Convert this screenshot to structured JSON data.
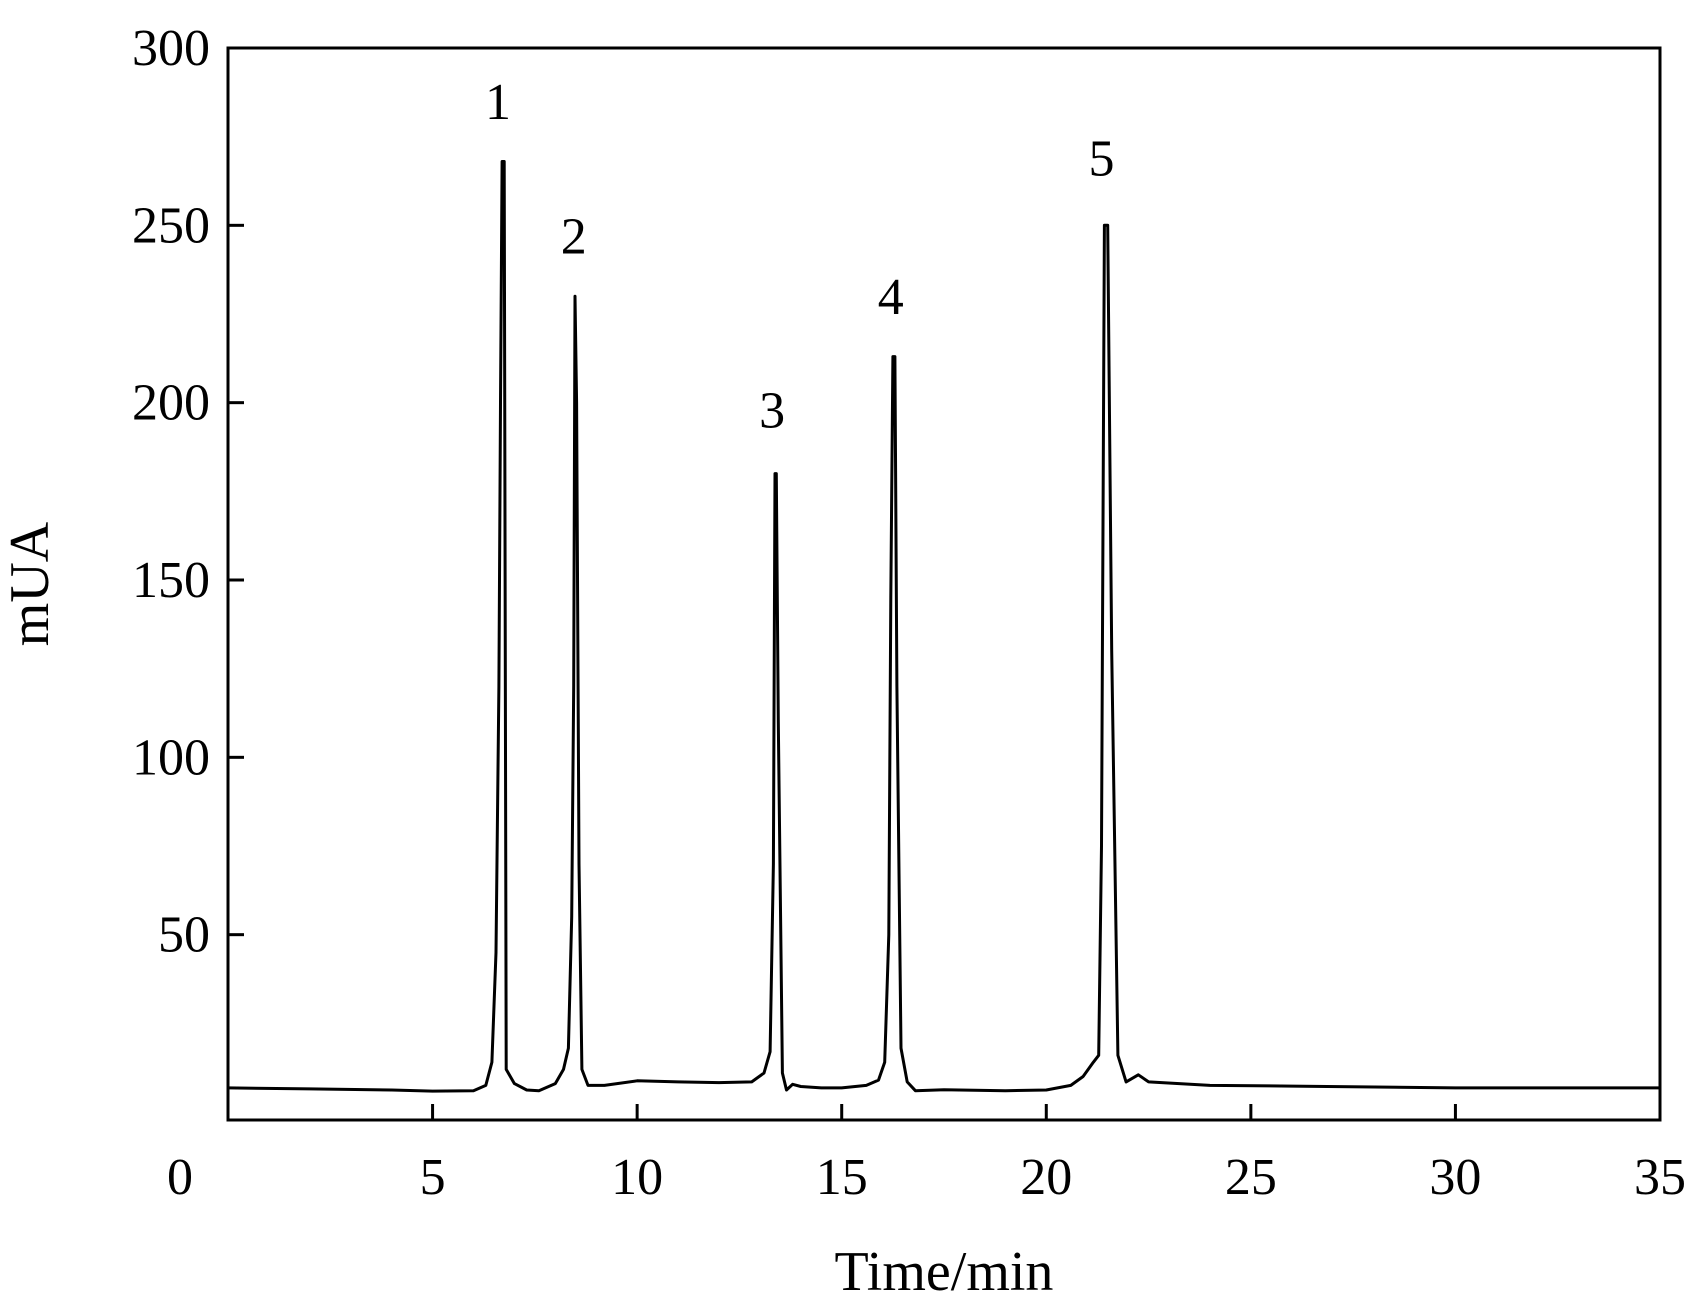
{
  "chart_data": {
    "type": "line",
    "title": "",
    "xlabel": "Time/min",
    "ylabel": "mUA",
    "xlim": [
      0,
      35
    ],
    "ylim": [
      0,
      300
    ],
    "x_ticks": [
      5,
      10,
      15,
      20,
      25,
      30,
      35
    ],
    "y_ticks": [
      50,
      100,
      150,
      200,
      250,
      300
    ],
    "origin_label": "0",
    "grid": false,
    "legend": "none",
    "line_color": "#000000",
    "series": [
      {
        "x": [
          0,
          2,
          4,
          5,
          6,
          6.3,
          6.45,
          6.55,
          6.62,
          6.66,
          6.7,
          6.75,
          6.8,
          7,
          7.3,
          7.6,
          8,
          8.2,
          8.32,
          8.4,
          8.45,
          8.48,
          8.52,
          8.58,
          8.65,
          8.8,
          9.2,
          10,
          11,
          12,
          12.8,
          13.1,
          13.25,
          13.33,
          13.37,
          13.4,
          13.45,
          13.55,
          13.65,
          13.8,
          14,
          14.5,
          15,
          15.6,
          15.9,
          16.05,
          16.15,
          16.2,
          16.25,
          16.3,
          16.35,
          16.45,
          16.6,
          16.8,
          17.5,
          19,
          20,
          20.6,
          20.9,
          21.15,
          21.28,
          21.35,
          21.42,
          21.5,
          21.6,
          21.75,
          21.95,
          22.25,
          22.5,
          24,
          26,
          30,
          35
        ],
        "y": [
          6.8,
          6.5,
          6.2,
          5.9,
          6.0,
          7.5,
          14,
          45,
          120,
          200,
          268,
          268,
          12,
          8,
          6.2,
          6.0,
          8,
          12,
          18,
          55,
          120,
          230,
          200,
          70,
          12,
          7.5,
          7.5,
          8.8,
          8.5,
          8.3,
          8.5,
          11,
          17,
          70,
          180,
          180,
          110,
          11,
          6.2,
          7.8,
          7.2,
          6.8,
          6.8,
          7.5,
          9,
          14,
          50,
          145,
          213,
          213,
          120,
          18,
          8.5,
          6.0,
          6.3,
          6.0,
          6.2,
          7.5,
          10,
          14,
          16,
          75,
          250,
          250,
          130,
          16,
          8.5,
          10.5,
          8.5,
          7.5,
          7.3,
          6.8,
          6.8
        ]
      }
    ],
    "peak_labels": [
      {
        "text": "1",
        "x": 6.6,
        "y": 280
      },
      {
        "text": "2",
        "x": 8.45,
        "y": 242
      },
      {
        "text": "3",
        "x": 13.3,
        "y": 193
      },
      {
        "text": "4",
        "x": 16.2,
        "y": 225
      },
      {
        "text": "5",
        "x": 21.35,
        "y": 264
      }
    ]
  }
}
